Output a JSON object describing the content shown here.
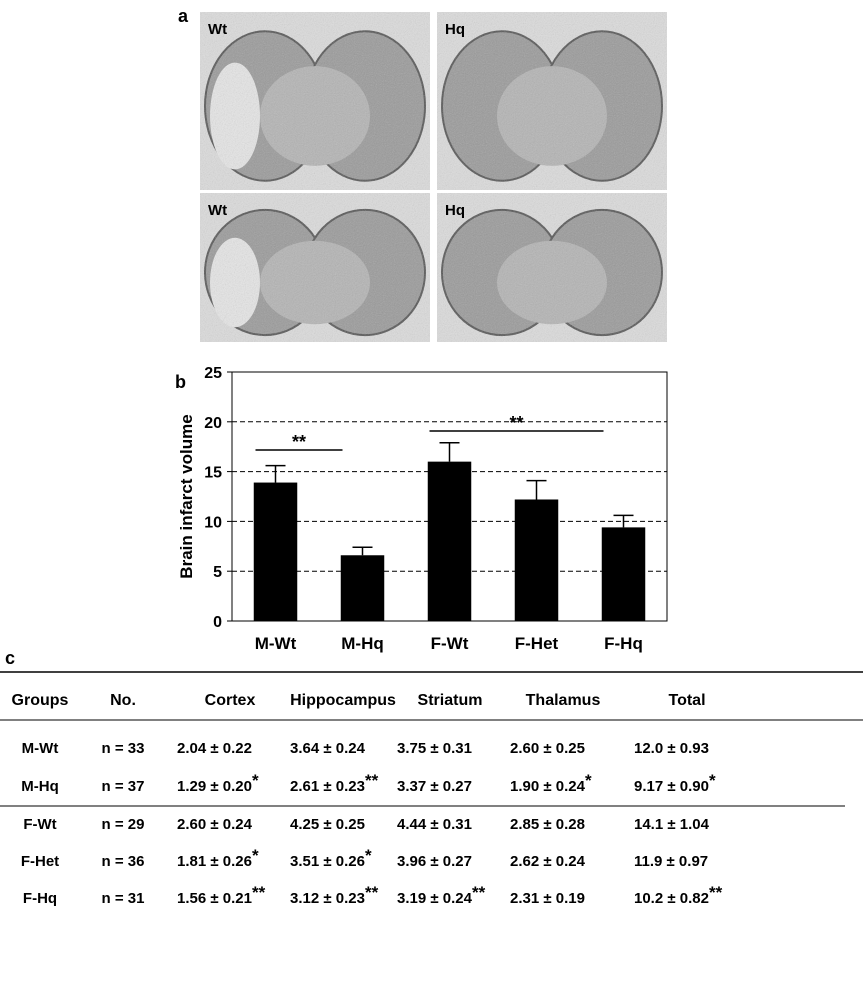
{
  "panel_a": {
    "label": "a",
    "images": [
      "Wt",
      "Hq",
      "Wt",
      "Hq"
    ]
  },
  "chart_data": {
    "type": "bar",
    "label": "b",
    "ylabel": "Brain infarct volume",
    "categories": [
      "M-Wt",
      "M-Hq",
      "F-Wt",
      "F-Het",
      "F-Hq"
    ],
    "values": [
      13.9,
      6.6,
      16.0,
      12.2,
      9.4
    ],
    "errors": [
      1.7,
      0.8,
      1.9,
      1.9,
      1.2
    ],
    "color": "#000000",
    "ylim": [
      0,
      25
    ],
    "yticks": [
      0,
      5,
      10,
      15,
      20,
      25
    ],
    "grid": true,
    "annotations": [
      "**",
      "**"
    ]
  },
  "table": {
    "label": "c",
    "header": [
      "Groups",
      "No.",
      "Cortex",
      "Hippocampus",
      "Striatum",
      "Thalamus",
      "Total"
    ],
    "rows": [
      [
        {
          "text": "M-Wt"
        },
        {
          "text": "n = 33"
        },
        {
          "text": "2.04 ± 0.22"
        },
        {
          "text": "3.64 ± 0.24"
        },
        {
          "text": "3.75 ± 0.31"
        },
        {
          "text": "2.60 ± 0.25"
        },
        {
          "text": "12.0 ± 0.93"
        }
      ],
      [
        {
          "text": "M-Hq"
        },
        {
          "text": "n = 37"
        },
        {
          "text": "1.29 ± 0.20",
          "sig": "*"
        },
        {
          "text": "2.61 ± 0.23",
          "sig": "**"
        },
        {
          "text": "3.37 ± 0.27"
        },
        {
          "text": "1.90 ± 0.24",
          "sig": "*"
        },
        {
          "text": "9.17 ± 0.90",
          "sig": "*"
        }
      ],
      [
        {
          "text": "F-Wt"
        },
        {
          "text": "n = 29"
        },
        {
          "text": "2.60 ± 0.24"
        },
        {
          "text": "4.25 ± 0.25"
        },
        {
          "text": "4.44 ± 0.31"
        },
        {
          "text": "2.85 ± 0.28"
        },
        {
          "text": "14.1 ± 1.04"
        }
      ],
      [
        {
          "text": "F-Het"
        },
        {
          "text": "n = 36"
        },
        {
          "text": "1.81 ± 0.26",
          "sig": "*"
        },
        {
          "text": "3.51 ± 0.26",
          "sig": "*"
        },
        {
          "text": "3.96 ± 0.27"
        },
        {
          "text": "2.62 ± 0.24"
        },
        {
          "text": "11.9 ± 0.97"
        }
      ],
      [
        {
          "text": "F-Hq"
        },
        {
          "text": "n = 31"
        },
        {
          "text": "1.56 ± 0.21",
          "sig": "**"
        },
        {
          "text": "3.12 ± 0.23",
          "sig": "**"
        },
        {
          "text": "3.19 ± 0.24",
          "sig": "**"
        },
        {
          "text": "2.31 ± 0.19"
        },
        {
          "text": "10.2 ± 0.82",
          "sig": "**"
        }
      ]
    ]
  }
}
